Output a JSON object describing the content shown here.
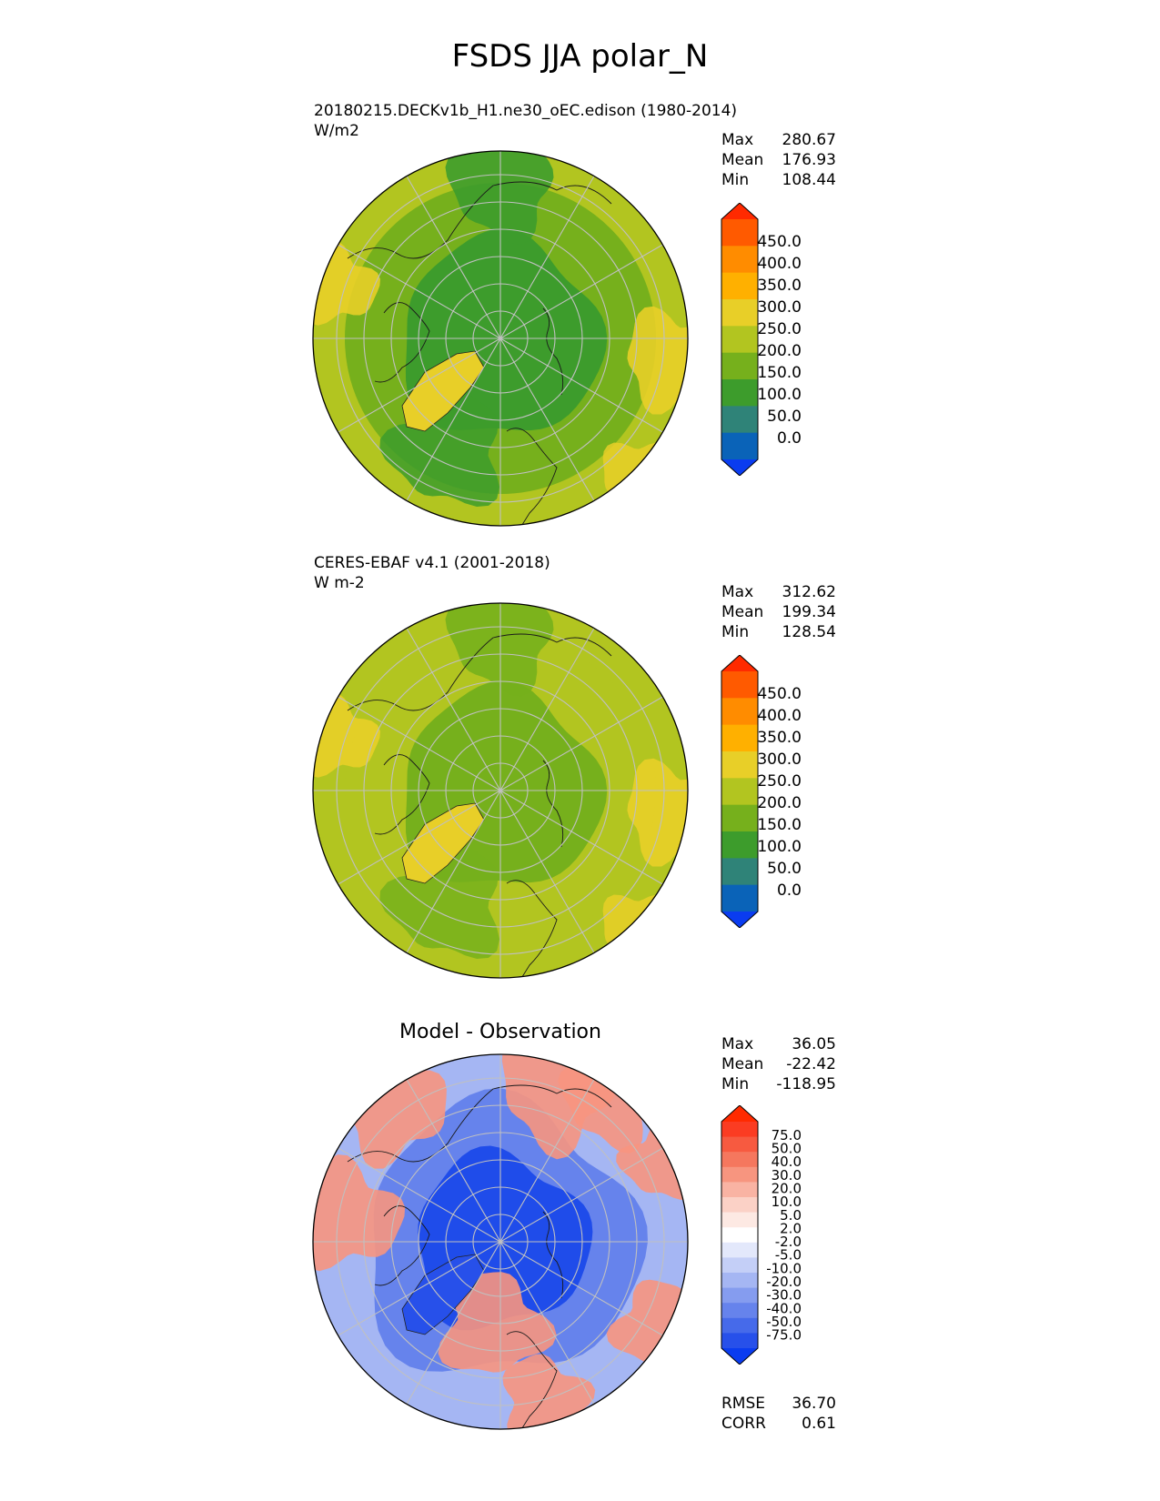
{
  "title": "FSDS JJA polar_N",
  "panels": [
    {
      "subtitle": "20180215.DECKv1b_H1.ne30_oEC.edison (1980-2014)",
      "units": "W/m2",
      "stats": {
        "max_label": "Max",
        "max": "280.67",
        "mean_label": "Mean",
        "mean": "176.93",
        "min_label": "Min",
        "min": "108.44"
      }
    },
    {
      "subtitle": "CERES-EBAF v4.1 (2001-2018)",
      "units": "W m-2",
      "stats": {
        "max_label": "Max",
        "max": "312.62",
        "mean_label": "Mean",
        "mean": "199.34",
        "min_label": "Min",
        "min": "128.54"
      }
    },
    {
      "title": "Model - Observation",
      "stats": {
        "max_label": "Max",
        "max": "36.05",
        "mean_label": "Mean",
        "mean": "-22.42",
        "min_label": "Min",
        "min": "-118.95"
      },
      "metrics": {
        "rmse_label": "RMSE",
        "rmse": "36.70",
        "corr_label": "CORR",
        "corr": "0.61"
      }
    }
  ],
  "colorbars": {
    "field": {
      "labels": [
        "450.0",
        "400.0",
        "350.0",
        "300.0",
        "250.0",
        "200.0",
        "150.0",
        "100.0",
        "50.0",
        "0.0"
      ],
      "colors": [
        "#ff2a00",
        "#ff5a00",
        "#ff8c00",
        "#ffb000",
        "#e8cf28",
        "#b2c520",
        "#76b01c",
        "#3d9c2c",
        "#2f8378",
        "#0a63b8",
        "#0a3cf0"
      ]
    },
    "diff": {
      "labels": [
        "75.0",
        "50.0",
        "40.0",
        "30.0",
        "20.0",
        "10.0",
        "5.0",
        "2.0",
        "-2.0",
        "-5.0",
        "-10.0",
        "-20.0",
        "-30.0",
        "-40.0",
        "-50.0",
        "-75.0"
      ],
      "colors": [
        "#ff2a00",
        "#fb3c22",
        "#f75a40",
        "#f5775e",
        "#f7957f",
        "#f9b3a3",
        "#fbd1c6",
        "#fde9e3",
        "#ffffff",
        "#e3e8fb",
        "#c4cff7",
        "#a5b6f3",
        "#859cef",
        "#6683ec",
        "#466aea",
        "#2750ea",
        "#0a3cf0"
      ]
    }
  },
  "map_colors": {
    "m1": {
      "base": "#76b01c",
      "light": "#b2c520",
      "dark": "#3d9c2c",
      "warm": "#e8cf28"
    },
    "m2": {
      "base": "#b2c520",
      "light": "#b2c520",
      "dark": "#76b01c",
      "warm": "#e8cf28"
    },
    "m3": {
      "base": "#6683ec",
      "light": "#f7957f",
      "dark": "#1f4cea",
      "warm": "#a5b6f3"
    }
  }
}
